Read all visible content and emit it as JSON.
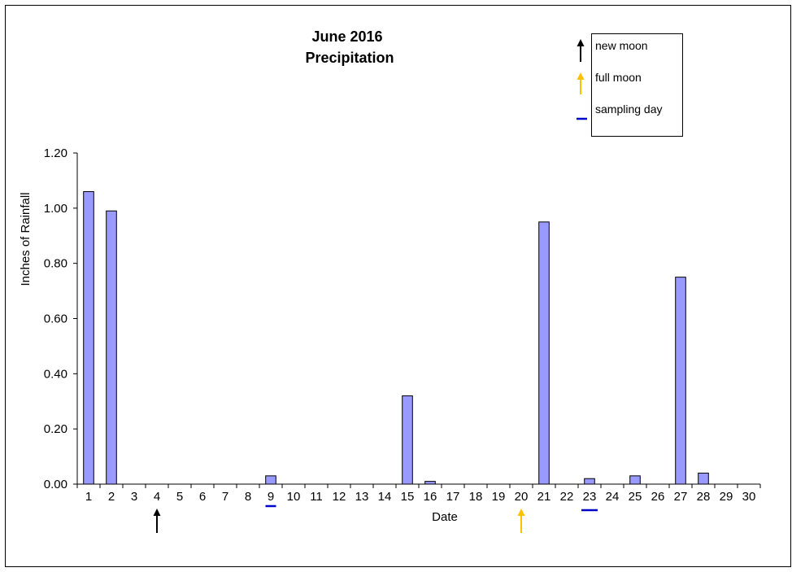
{
  "chart_data": {
    "type": "bar",
    "title_line1": "June 2016",
    "title_line2": "Precipitation",
    "xlabel": "Date",
    "ylabel": "Inches of Rainfall",
    "ylim": [
      0,
      1.2
    ],
    "yticks": [
      "0.00",
      "0.20",
      "0.40",
      "0.60",
      "0.80",
      "1.00",
      "1.20"
    ],
    "categories": [
      "1",
      "2",
      "3",
      "4",
      "5",
      "6",
      "7",
      "8",
      "9",
      "10",
      "11",
      "12",
      "13",
      "14",
      "15",
      "16",
      "17",
      "18",
      "19",
      "20",
      "21",
      "22",
      "23",
      "24",
      "25",
      "26",
      "27",
      "28",
      "29",
      "30"
    ],
    "values": [
      1.06,
      0.99,
      0,
      0,
      0,
      0,
      0,
      0,
      0.03,
      0,
      0,
      0,
      0,
      0,
      0.32,
      0.01,
      0,
      0,
      0,
      0,
      0.95,
      0,
      0.02,
      0,
      0.03,
      0,
      0.75,
      0.04,
      0,
      0
    ],
    "bar_color": "#9999ff",
    "grid": false,
    "markers": {
      "new_moon": [
        "4"
      ],
      "full_moon": [
        "20"
      ],
      "sampling_day": [
        "9",
        "23"
      ]
    },
    "marker_colors": {
      "new_moon": "#000000",
      "full_moon": "#ffc000",
      "sampling_day": "#0000cc"
    },
    "legend": {
      "position": "top-right",
      "entries": [
        {
          "key": "new_moon",
          "label": "new moon",
          "icon": "black-arrow-icon"
        },
        {
          "key": "full_moon",
          "label": "full moon",
          "icon": "yellow-arrow-icon"
        },
        {
          "key": "sampling_day",
          "label": "sampling day",
          "icon": "blue-dash-icon"
        }
      ]
    }
  }
}
